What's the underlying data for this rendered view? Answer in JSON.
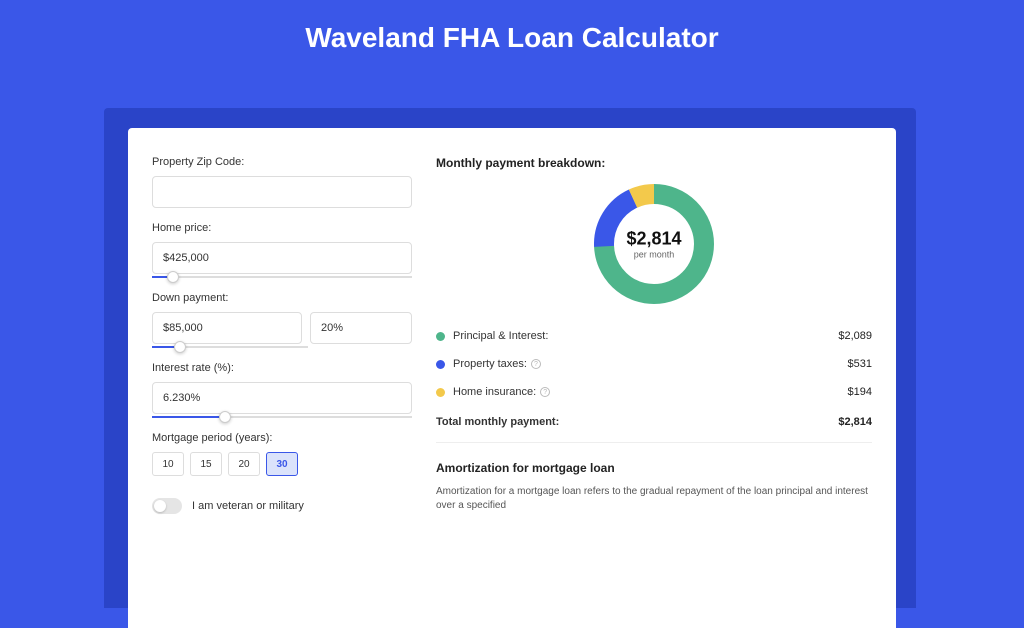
{
  "title": "Waveland FHA Loan Calculator",
  "form": {
    "zip": {
      "label": "Property Zip Code:",
      "value": ""
    },
    "home_price": {
      "label": "Home price:",
      "value": "$425,000",
      "slider_pct": 8
    },
    "down_payment": {
      "label": "Down payment:",
      "amount": "$85,000",
      "percent": "20%",
      "slider_pct": 18
    },
    "interest_rate": {
      "label": "Interest rate (%):",
      "value": "6.230%",
      "slider_pct": 28
    },
    "mortgage_period": {
      "label": "Mortgage period (years):",
      "options": [
        "10",
        "15",
        "20",
        "30"
      ],
      "active": "30"
    },
    "veteran": {
      "label": "I am veteran or military",
      "checked": false
    }
  },
  "breakdown": {
    "title": "Monthly payment breakdown:",
    "donut": {
      "amount": "$2,814",
      "sub": "per month",
      "segments": [
        {
          "key": "principal",
          "value": 2089,
          "color": "#4eb58b"
        },
        {
          "key": "taxes",
          "value": 531,
          "color": "#3a57e8"
        },
        {
          "key": "insurance",
          "value": 194,
          "color": "#f3c94b"
        }
      ]
    },
    "legend": [
      {
        "label": "Principal & Interest:",
        "value": "$2,089",
        "color": "#4eb58b",
        "info": false
      },
      {
        "label": "Property taxes:",
        "value": "$531",
        "color": "#3a57e8",
        "info": true
      },
      {
        "label": "Home insurance:",
        "value": "$194",
        "color": "#f3c94b",
        "info": true
      }
    ],
    "total": {
      "label": "Total monthly payment:",
      "value": "$2,814"
    }
  },
  "amortization": {
    "title": "Amortization for mortgage loan",
    "text": "Amortization for a mortgage loan refers to the gradual repayment of the loan principal and interest over a specified"
  },
  "style": {
    "donut_size": 120,
    "donut_thickness": 20
  }
}
